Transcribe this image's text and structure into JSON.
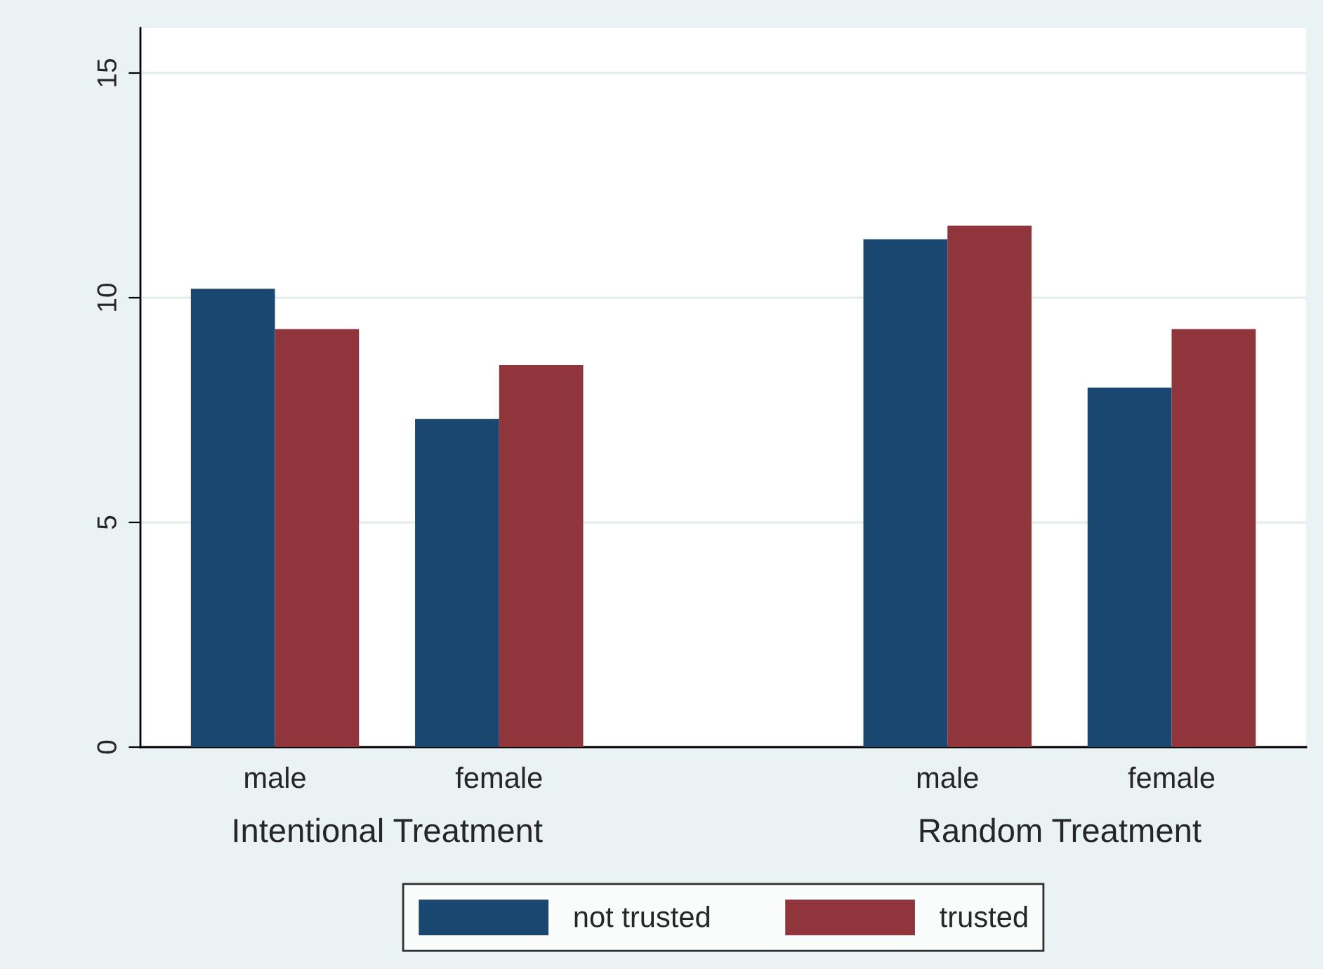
{
  "chart_data": {
    "type": "bar",
    "categories": [
      "male",
      "female",
      null,
      "male",
      "female"
    ],
    "series": [
      {
        "name": "not trusted",
        "color": "#1a476f",
        "values": [
          10.2,
          7.3,
          null,
          11.3,
          8.0
        ]
      },
      {
        "name": "trusted",
        "color": "#90353b",
        "values": [
          9.3,
          8.5,
          null,
          11.6,
          9.3
        ]
      }
    ],
    "ylim": [
      0,
      16
    ],
    "yticks": [
      0,
      5,
      10,
      15
    ],
    "grid": "y",
    "legend": "bottom",
    "annotations": [
      "Intentional Treatment",
      "Random Treatment"
    ]
  }
}
